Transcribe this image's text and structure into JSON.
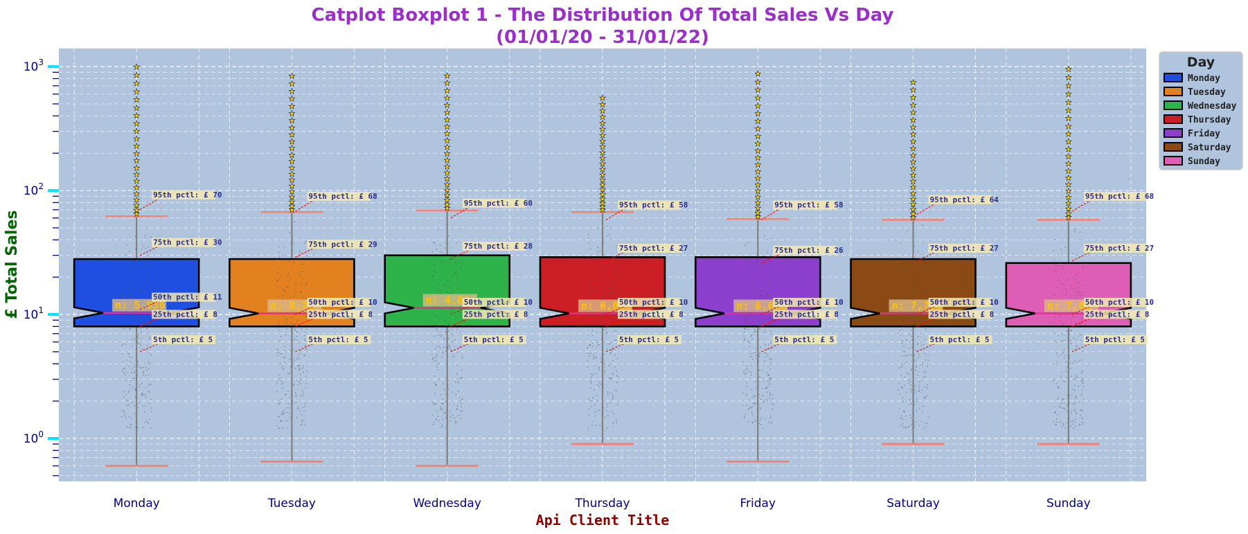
{
  "chart_data": {
    "type": "boxplot",
    "title_line1": "Catplot Boxplot 1 - The Distribution Of Total Sales Vs Day",
    "title_line2": "(01/01/20 - 31/01/22)",
    "xlabel": "Api Client Title",
    "ylabel": "£ Total Sales",
    "y_scale": "log",
    "ylim": [
      0.45,
      1400
    ],
    "y_tick_labels": [
      "10^0",
      "10^1",
      "10^2",
      "10^3"
    ],
    "grid": true,
    "notched": true,
    "legend": {
      "title": "Day",
      "placement": "upper-right-outside"
    },
    "colors": {
      "title": "#9b30c8",
      "axes_bg": "#b0c4de",
      "ylabel": "#006400",
      "xlabel": "#8b0000",
      "tick": "#000080",
      "major_tick_mark": "#00e5ff",
      "limit_line": "#fa8072",
      "whisker": "#808080",
      "median": "#e0309a",
      "outlier_face": "#ffd700",
      "annotation_text": "#2b2b8c",
      "annotation_box": "#f3e9b0",
      "annotation_arrow": "#ff0000",
      "count_text": "#ffc200",
      "count_box": "#d9b98a"
    },
    "categories": [
      "Monday",
      "Tuesday",
      "Wednesday",
      "Thursday",
      "Friday",
      "Saturday",
      "Sunday"
    ],
    "series": [
      {
        "name": "Monday",
        "color": "#1f4fe0",
        "q1": 8,
        "median": 10.3,
        "q3": 28,
        "whisker_low": 0.6,
        "whisker_high": 62,
        "p5": 5,
        "p25": 8,
        "p50": 11,
        "p75": 30,
        "p95": 70,
        "n_label": "n: 5,936",
        "outlier_max": 1000,
        "labels": {
          "p95": "95th pctl: £ 70",
          "p75": "75th pctl: £ 30",
          "p50": "50th pctl: £ 11",
          "p25": "25th pctl: £ 8",
          "p5": "5th pctl: £ 5"
        }
      },
      {
        "name": "Tuesday",
        "color": "#e38020",
        "q1": 8,
        "median": 10.2,
        "q3": 28,
        "whisker_low": 0.65,
        "whisker_high": 67,
        "p5": 5,
        "p25": 8,
        "p50": 10,
        "p75": 29,
        "p95": 68,
        "n_label": "n: 8,7…",
        "outlier_max": 840,
        "labels": {
          "p95": "95th pctl: £ 68",
          "p75": "75th pctl: £ 29",
          "p50": "50th pctl: £ 10",
          "p25": "25th pctl: £ 8",
          "p5": "5th pctl: £ 5"
        }
      },
      {
        "name": "Wednesday",
        "color": "#2db34a",
        "q1": 8,
        "median": 11.3,
        "q3": 30,
        "whisker_low": 0.6,
        "whisker_high": 69,
        "p5": 5,
        "p25": 8,
        "p50": 10,
        "p75": 28,
        "p95": 60,
        "n_label": "n: 4,84…",
        "outlier_max": 850,
        "labels": {
          "p95": "95th pctl: £ 60",
          "p75": "75th pctl: £ 28",
          "p50": "50th pctl: £ 10",
          "p25": "25th pctl: £ 8",
          "p5": "5th pctl: £ 5"
        }
      },
      {
        "name": "Thursday",
        "color": "#cc1f25",
        "q1": 8,
        "median": 10.2,
        "q3": 29,
        "whisker_low": 0.9,
        "whisker_high": 67,
        "p5": 5,
        "p25": 8,
        "p50": 10,
        "p75": 27,
        "p95": 58,
        "n_label": "n: 6,02…",
        "outlier_max": 560,
        "labels": {
          "p95": "95th pctl: £ 58",
          "p75": "75th pctl: £ 27",
          "p50": "50th pctl: £ 10",
          "p25": "25th pctl: £ 8",
          "p5": "5th pctl: £ 5"
        }
      },
      {
        "name": "Friday",
        "color": "#8b3fcc",
        "q1": 8,
        "median": 10.2,
        "q3": 29,
        "whisker_low": 0.65,
        "whisker_high": 59,
        "p5": 5,
        "p25": 8,
        "p50": 10,
        "p75": 26,
        "p95": 58,
        "n_label": "n: 6,61…",
        "outlier_max": 880,
        "labels": {
          "p95": "95th pctl: £ 58",
          "p75": "75th pctl: £ 26",
          "p50": "50th pctl: £ 10",
          "p25": "25th pctl: £ 8",
          "p5": "5th pctl: £ 5"
        }
      },
      {
        "name": "Saturday",
        "color": "#8b4a14",
        "q1": 8,
        "median": 10.2,
        "q3": 28,
        "whisker_low": 0.9,
        "whisker_high": 58,
        "p5": 5,
        "p25": 8,
        "p50": 10,
        "p75": 27,
        "p95": 64,
        "n_label": "n: 7,76…",
        "outlier_max": 750,
        "labels": {
          "p95": "95th pctl: £ 64",
          "p75": "75th pctl: £ 27",
          "p50": "50th pctl: £ 10",
          "p25": "25th pctl: £ 8",
          "p5": "5th pctl: £ 5"
        }
      },
      {
        "name": "Sunday",
        "color": "#de5eb5",
        "q1": 8,
        "median": 10.2,
        "q3": 26,
        "whisker_low": 0.9,
        "whisker_high": 58,
        "p5": 5,
        "p25": 8,
        "p50": 10,
        "p75": 27,
        "p95": 68,
        "n_label": "n: 7,0…",
        "outlier_max": 960,
        "labels": {
          "p95": "95th pctl: £ 68",
          "p75": "75th pctl: £ 27",
          "p50": "50th pctl: £ 10",
          "p25": "25th pctl: £ 8",
          "p5": "5th pctl: £ 5"
        }
      }
    ]
  }
}
